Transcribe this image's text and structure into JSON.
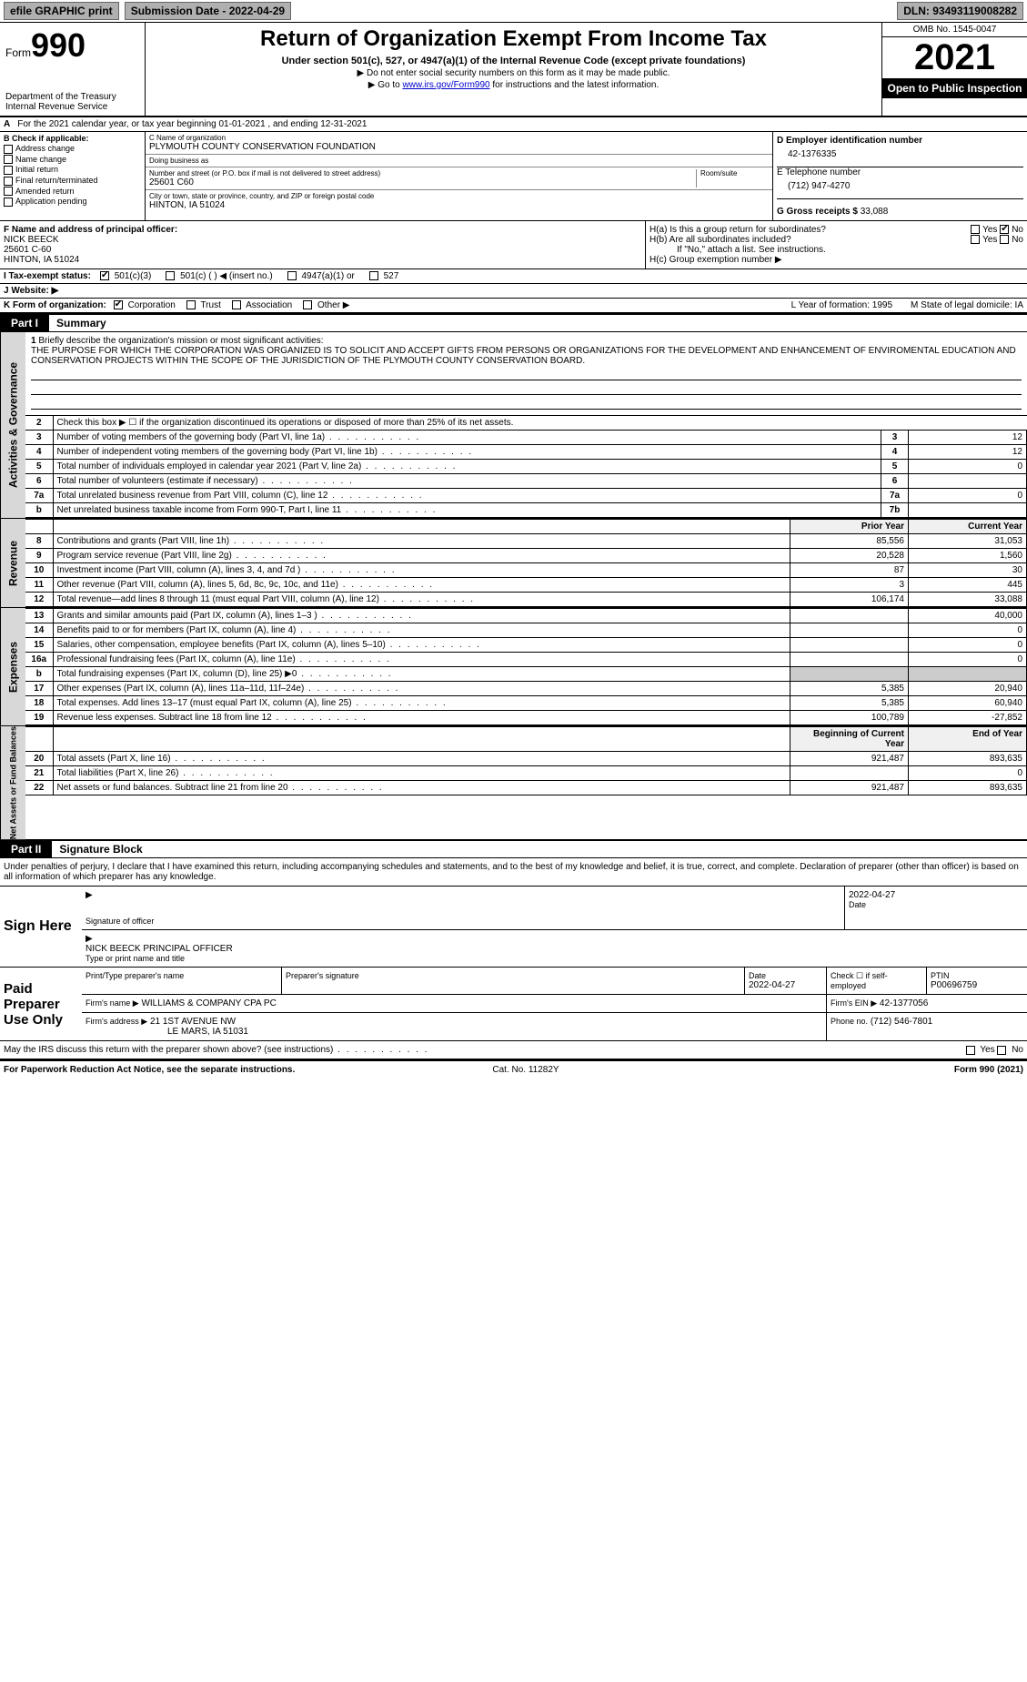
{
  "topbar": {
    "efile": "efile GRAPHIC print",
    "submission": "Submission Date - 2022-04-29",
    "dln": "DLN: 93493119008282"
  },
  "header": {
    "form_label": "Form",
    "form_num": "990",
    "title": "Return of Organization Exempt From Income Tax",
    "subtitle": "Under section 501(c), 527, or 4947(a)(1) of the Internal Revenue Code (except private foundations)",
    "note1": "▶ Do not enter social security numbers on this form as it may be made public.",
    "note2_pre": "▶ Go to ",
    "note2_link": "www.irs.gov/Form990",
    "note2_post": " for instructions and the latest information.",
    "dept": "Department of the Treasury",
    "irs": "Internal Revenue Service",
    "omb": "OMB No. 1545-0047",
    "year": "2021",
    "open": "Open to Public Inspection"
  },
  "rowA": {
    "prefix": "A",
    "text": "For the 2021 calendar year, or tax year beginning 01-01-2021    , and ending 12-31-2021"
  },
  "colB": {
    "title": "B Check if applicable:",
    "items": [
      "Address change",
      "Name change",
      "Initial return",
      "Final return/terminated",
      "Amended return",
      "Application pending"
    ]
  },
  "boxC": {
    "c_label": "C Name of organization",
    "org": "PLYMOUTH COUNTY CONSERVATION FOUNDATION",
    "dba_label": "Doing business as",
    "dba": "",
    "addr_label": "Number and street (or P.O. box if mail is not delivered to street address)",
    "room_label": "Room/suite",
    "addr": "25601 C60",
    "city_label": "City or town, state or province, country, and ZIP or foreign postal code",
    "city": "HINTON, IA  51024"
  },
  "boxD": {
    "d_label": "D Employer identification number",
    "ein": "42-1376335",
    "e_label": "E Telephone number",
    "phone": "(712) 947-4270",
    "g_label": "G Gross receipts $",
    "g_val": "33,088"
  },
  "rowF": {
    "f_label": "F  Name and address of principal officer:",
    "name": "NICK BEECK",
    "addr1": "25601 C-60",
    "addr2": "HINTON, IA  51024"
  },
  "rowH": {
    "ha": "H(a)  Is this a group return for subordinates?",
    "hb": "H(b)  Are all subordinates included?",
    "hb_note": "If \"No,\" attach a list. See instructions.",
    "hc": "H(c)  Group exemption number ▶",
    "yes": "Yes",
    "no": "No"
  },
  "rowI": {
    "label": "I   Tax-exempt status:",
    "opts": [
      "501(c)(3)",
      "501(c) (  ) ◀ (insert no.)",
      "4947(a)(1) or",
      "527"
    ]
  },
  "rowJ": {
    "label": "J   Website: ▶"
  },
  "rowK": {
    "label": "K Form of organization:",
    "opts": [
      "Corporation",
      "Trust",
      "Association",
      "Other ▶"
    ],
    "l": "L Year of formation: 1995",
    "m": "M State of legal domicile: IA"
  },
  "part1": {
    "tag": "Part I",
    "title": "Summary"
  },
  "mission": {
    "num": "1",
    "label": "Briefly describe the organization's mission or most significant activities:",
    "text": "THE PURPOSE FOR WHICH THE CORPORATION WAS ORGANIZED IS TO SOLICIT AND ACCEPT GIFTS FROM PERSONS OR ORGANIZATIONS FOR THE DEVELOPMENT AND ENHANCEMENT OF ENVIROMENTAL EDUCATION AND CONSERVATION PROJECTS WITHIN THE SCOPE OF THE JURISDICTION OF THE PLYMOUTH COUNTY CONSERVATION BOARD."
  },
  "gov_section_label": "Activities & Governance",
  "gov_lines": [
    {
      "n": "2",
      "d": "Check this box ▶ ☐  if the organization discontinued its operations or disposed of more than 25% of its net assets."
    },
    {
      "n": "3",
      "d": "Number of voting members of the governing body (Part VI, line 1a)",
      "box": "3",
      "v": "12"
    },
    {
      "n": "4",
      "d": "Number of independent voting members of the governing body (Part VI, line 1b)",
      "box": "4",
      "v": "12"
    },
    {
      "n": "5",
      "d": "Total number of individuals employed in calendar year 2021 (Part V, line 2a)",
      "box": "5",
      "v": "0"
    },
    {
      "n": "6",
      "d": "Total number of volunteers (estimate if necessary)",
      "box": "6",
      "v": ""
    },
    {
      "n": "7a",
      "d": "Total unrelated business revenue from Part VIII, column (C), line 12",
      "box": "7a",
      "v": "0"
    },
    {
      "n": "b",
      "d": "Net unrelated business taxable income from Form 990-T, Part I, line 11",
      "box": "7b",
      "v": ""
    }
  ],
  "rev_label": "Revenue",
  "year_hdr": {
    "prior": "Prior Year",
    "current": "Current Year"
  },
  "rev_lines": [
    {
      "n": "8",
      "d": "Contributions and grants (Part VIII, line 1h)",
      "p": "85,556",
      "c": "31,053"
    },
    {
      "n": "9",
      "d": "Program service revenue (Part VIII, line 2g)",
      "p": "20,528",
      "c": "1,560"
    },
    {
      "n": "10",
      "d": "Investment income (Part VIII, column (A), lines 3, 4, and 7d )",
      "p": "87",
      "c": "30"
    },
    {
      "n": "11",
      "d": "Other revenue (Part VIII, column (A), lines 5, 6d, 8c, 9c, 10c, and 11e)",
      "p": "3",
      "c": "445"
    },
    {
      "n": "12",
      "d": "Total revenue—add lines 8 through 11 (must equal Part VIII, column (A), line 12)",
      "p": "106,174",
      "c": "33,088"
    }
  ],
  "exp_label": "Expenses",
  "exp_lines": [
    {
      "n": "13",
      "d": "Grants and similar amounts paid (Part IX, column (A), lines 1–3 )",
      "p": "",
      "c": "40,000"
    },
    {
      "n": "14",
      "d": "Benefits paid to or for members (Part IX, column (A), line 4)",
      "p": "",
      "c": "0"
    },
    {
      "n": "15",
      "d": "Salaries, other compensation, employee benefits (Part IX, column (A), lines 5–10)",
      "p": "",
      "c": "0"
    },
    {
      "n": "16a",
      "d": "Professional fundraising fees (Part IX, column (A), line 11e)",
      "p": "",
      "c": "0"
    },
    {
      "n": "b",
      "d": "Total fundraising expenses (Part IX, column (D), line 25) ▶0",
      "p": "—",
      "c": "—"
    },
    {
      "n": "17",
      "d": "Other expenses (Part IX, column (A), lines 11a–11d, 11f–24e)",
      "p": "5,385",
      "c": "20,940"
    },
    {
      "n": "18",
      "d": "Total expenses. Add lines 13–17 (must equal Part IX, column (A), line 25)",
      "p": "5,385",
      "c": "60,940"
    },
    {
      "n": "19",
      "d": "Revenue less expenses. Subtract line 18 from line 12",
      "p": "100,789",
      "c": "-27,852"
    }
  ],
  "net_label": "Net Assets or Fund Balances",
  "net_hdr": {
    "prior": "Beginning of Current Year",
    "current": "End of Year"
  },
  "net_lines": [
    {
      "n": "20",
      "d": "Total assets (Part X, line 16)",
      "p": "921,487",
      "c": "893,635"
    },
    {
      "n": "21",
      "d": "Total liabilities (Part X, line 26)",
      "p": "",
      "c": "0"
    },
    {
      "n": "22",
      "d": "Net assets or fund balances. Subtract line 21 from line 20",
      "p": "921,487",
      "c": "893,635"
    }
  ],
  "part2": {
    "tag": "Part II",
    "title": "Signature Block"
  },
  "penalty": "Under penalties of perjury, I declare that I have examined this return, including accompanying schedules and statements, and to the best of my knowledge and belief, it is true, correct, and complete. Declaration of preparer (other than officer) is based on all information of which preparer has any knowledge.",
  "sign": {
    "label": "Sign Here",
    "sig_label": "Signature of officer",
    "date": "2022-04-27",
    "date_label": "Date",
    "name": "NICK BEECK  PRINCIPAL OFFICER",
    "name_label": "Type or print name and title"
  },
  "paid": {
    "label": "Paid Preparer Use Only",
    "print_label": "Print/Type preparer's name",
    "print_val": "",
    "sig_label": "Preparer's signature",
    "date_label": "Date",
    "date": "2022-04-27",
    "check_label": "Check ☐ if self-employed",
    "ptin_label": "PTIN",
    "ptin": "P00696759",
    "firm_name_label": "Firm's name    ▶",
    "firm_name": "WILLIAMS & COMPANY CPA PC",
    "firm_ein_label": "Firm's EIN ▶",
    "firm_ein": "42-1377056",
    "firm_addr_label": "Firm's address ▶",
    "firm_addr": "21 1ST AVENUE NW",
    "firm_city": "LE MARS, IA  51031",
    "phone_label": "Phone no.",
    "phone": "(712) 546-7801"
  },
  "discuss": "May the IRS discuss this return with the preparer shown above? (see instructions)",
  "footer": {
    "left": "For Paperwork Reduction Act Notice, see the separate instructions.",
    "mid": "Cat. No. 11282Y",
    "right": "Form 990 (2021)"
  }
}
